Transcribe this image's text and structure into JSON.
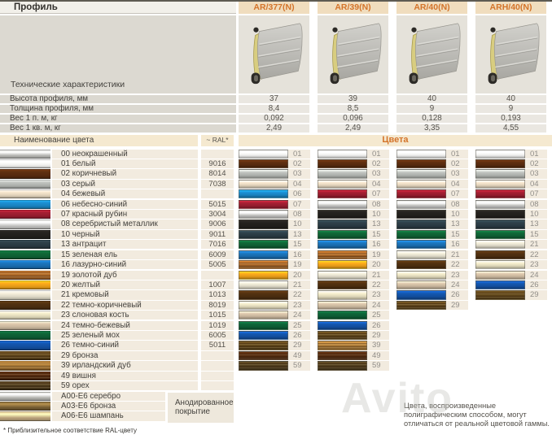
{
  "header": {
    "profile_label": "Профиль",
    "columns": [
      "AR/377(N)",
      "AR/39(N)",
      "AR/40(N)",
      "ARH/40(N)"
    ]
  },
  "tech": {
    "section_label": "Технические характеристики",
    "rows": [
      {
        "label": "Высота профиля, мм",
        "values": [
          "37",
          "39",
          "40",
          "40"
        ]
      },
      {
        "label": "Толщина профиля, мм",
        "values": [
          "8,4",
          "8,5",
          "9",
          "9"
        ]
      },
      {
        "label": "Вес 1 п. м, кг",
        "values": [
          "0,092",
          "0,096",
          "0,128",
          "0,193"
        ]
      },
      {
        "label": "Вес 1 кв. м, кг",
        "values": [
          "2,49",
          "2,49",
          "3,35",
          "4,55"
        ]
      }
    ]
  },
  "colors_table": {
    "name_header": "Наименование цвета",
    "ral_header": "~ RAL*",
    "colors_header": "Цвета",
    "anodized_label_line1": "Анодированное",
    "anodized_label_line2": "покрытие",
    "rows": [
      {
        "code": "00",
        "name": "00 неокрашенный",
        "ral": "",
        "hex": "#c8c8c4",
        "kind": "metal"
      },
      {
        "code": "01",
        "name": "01 белый",
        "ral": "9016",
        "hex": "#fcfcfa",
        "kind": "paint"
      },
      {
        "code": "02",
        "name": "02 коричневый",
        "ral": "8014",
        "hex": "#5a2c0f",
        "kind": "paint"
      },
      {
        "code": "03",
        "name": "03 серый",
        "ral": "7038",
        "hex": "#b6b9b5",
        "kind": "paint"
      },
      {
        "code": "04",
        "name": "04 бежевый",
        "ral": "",
        "hex": "#ecdcc4",
        "kind": "paint"
      },
      {
        "code": "06",
        "name": "06 небесно-синий",
        "ral": "5015",
        "hex": "#1a88c8",
        "kind": "paint"
      },
      {
        "code": "07",
        "name": "07 красный рубин",
        "ral": "3004",
        "hex": "#9d1e30",
        "kind": "paint"
      },
      {
        "code": "08",
        "name": "08 серебристый металлик",
        "ral": "9006",
        "hex": "#d2d2d0",
        "kind": "metal"
      },
      {
        "code": "10",
        "name": "10 черный",
        "ral": "9011",
        "hex": "#23201d",
        "kind": "paint"
      },
      {
        "code": "13",
        "name": "13 антрацит",
        "ral": "7016",
        "hex": "#2b3c45",
        "kind": "paint"
      },
      {
        "code": "15",
        "name": "15 зеленая ель",
        "ral": "6009",
        "hex": "#0f6335",
        "kind": "paint"
      },
      {
        "code": "16",
        "name": "16 лазурно-синий",
        "ral": "5005",
        "hex": "#1a70b5",
        "kind": "paint"
      },
      {
        "code": "19",
        "name": "19 золотой дуб",
        "ral": "",
        "hex": "#a86628",
        "kind": "wood"
      },
      {
        "code": "20",
        "name": "20 желтый",
        "ral": "1007",
        "hex": "#f1a31a",
        "kind": "paint"
      },
      {
        "code": "21",
        "name": "21 кремовый",
        "ral": "1013",
        "hex": "#e9e4d1",
        "kind": "paint"
      },
      {
        "code": "22",
        "name": "22 темно-коричневый",
        "ral": "8019",
        "hex": "#4e2f10",
        "kind": "paint"
      },
      {
        "code": "23",
        "name": "23 слоновая кость",
        "ral": "1015",
        "hex": "#eae3c3",
        "kind": "paint"
      },
      {
        "code": "24",
        "name": "24 темно-бежевый",
        "ral": "1019",
        "hex": "#d3bfa5",
        "kind": "paint"
      },
      {
        "code": "25",
        "name": "25 зеленый мох",
        "ral": "6005",
        "hex": "#0d6036",
        "kind": "paint"
      },
      {
        "code": "26",
        "name": "26 темно-синий",
        "ral": "5011",
        "hex": "#1352a6",
        "kind": "paint"
      },
      {
        "code": "29",
        "name": "29 бронза",
        "ral": "",
        "hex": "#5d441b",
        "kind": "wood"
      },
      {
        "code": "39",
        "name": "39 ирландский дуб",
        "ral": "",
        "hex": "#a87937",
        "kind": "wood"
      },
      {
        "code": "49",
        "name": "49 вишня",
        "ral": "",
        "hex": "#512a10",
        "kind": "wood"
      },
      {
        "code": "59",
        "name": "59 орех",
        "ral": "",
        "hex": "#4d3a1d",
        "kind": "wood"
      },
      {
        "code": "A00",
        "name": "A00-E6 серебро",
        "ral": "",
        "hex": "#c5c5bf",
        "kind": "metal",
        "anodized": true
      },
      {
        "code": "A03",
        "name": "A03-E6 бронза",
        "ral": "",
        "hex": "#7d6436",
        "kind": "metal",
        "anodized": true
      },
      {
        "code": "A06",
        "name": "A06-E6 шампань",
        "ral": "",
        "hex": "#ccb387",
        "kind": "metal",
        "anodized": true
      }
    ],
    "profile_colors": [
      [
        "01",
        "02",
        "03",
        "04",
        "06",
        "07",
        "08",
        "10",
        "13",
        "15",
        "16",
        "19",
        "20",
        "21",
        "22",
        "23",
        "24",
        "25",
        "26",
        "29",
        "49",
        "59"
      ],
      [
        "01",
        "02",
        "03",
        "04",
        "07",
        "08",
        "10",
        "13",
        "15",
        "16",
        "19",
        "20",
        "21",
        "22",
        "23",
        "24",
        "25",
        "26",
        "29",
        "39",
        "49",
        "59"
      ],
      [
        "01",
        "02",
        "03",
        "04",
        "07",
        "08",
        "10",
        "13",
        "15",
        "16",
        "21",
        "22",
        "23",
        "24",
        "26",
        "29"
      ],
      [
        "01",
        "02",
        "03",
        "04",
        "07",
        "08",
        "10",
        "13",
        "15",
        "21",
        "22",
        "23",
        "24",
        "26",
        "29"
      ]
    ]
  },
  "footnotes": {
    "ral_note": "* Приблизительное соответствие RAL-цвету",
    "print_note": "Цвета, воспроизведенные полиграфическим способом, могут отличаться от реальной цветовой гаммы."
  },
  "watermark": "Avito",
  "accent": {
    "orange": "#d4742a",
    "header_beige": "#f0ddbe",
    "table_beige": "#f5e9d0",
    "row_cream": "#f2ebdf",
    "panel_grey": "#dcd9d1",
    "image_cell": "#e5e2da",
    "foam_yellow": "#d8cd80"
  }
}
